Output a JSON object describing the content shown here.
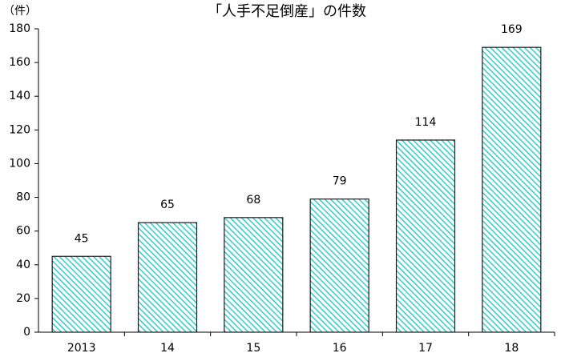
{
  "chart_data": {
    "type": "bar",
    "title": "「人手不足倒産」の件数",
    "y_axis_label": "（件）",
    "categories": [
      "2013",
      "14",
      "15",
      "16",
      "17",
      "18"
    ],
    "values": [
      45,
      65,
      68,
      79,
      114,
      169
    ],
    "color": "#33cccc",
    "ylim": [
      0,
      180
    ],
    "yticks": [
      0,
      20,
      40,
      60,
      80,
      100,
      120,
      140,
      160,
      180
    ],
    "grid": false
  }
}
